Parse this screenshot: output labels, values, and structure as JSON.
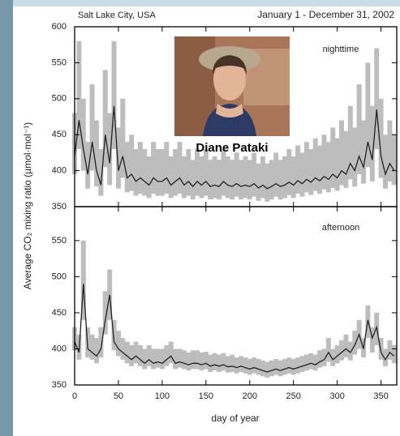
{
  "photo_caption": "Diane Pataki",
  "chart_data": [
    {
      "type": "line",
      "header_left": "Salt Lake City, USA",
      "header_right": "January 1 - December 31, 2002",
      "title": "nighttime",
      "ylabel": "Average CO₂ mixing ratio (µmol·mol⁻¹)",
      "color": "#222222",
      "band_color": "#bdbdbd",
      "xlim": [
        0,
        368
      ],
      "xticks": [
        0,
        50,
        100,
        150,
        200,
        250,
        300,
        350
      ],
      "ylim": [
        350,
        600
      ],
      "yticks": [
        350,
        400,
        450,
        500,
        550,
        600
      ],
      "x": [
        0,
        5,
        10,
        15,
        20,
        25,
        30,
        35,
        40,
        45,
        50,
        55,
        60,
        65,
        70,
        75,
        80,
        85,
        90,
        95,
        100,
        105,
        110,
        115,
        120,
        125,
        130,
        135,
        140,
        145,
        150,
        155,
        160,
        165,
        170,
        175,
        180,
        185,
        190,
        195,
        200,
        205,
        210,
        215,
        220,
        225,
        230,
        235,
        240,
        245,
        250,
        255,
        260,
        265,
        270,
        275,
        280,
        285,
        290,
        295,
        300,
        305,
        310,
        315,
        320,
        325,
        330,
        335,
        340,
        345,
        350,
        355,
        360,
        365
      ],
      "values": [
        420,
        470,
        430,
        395,
        440,
        400,
        380,
        450,
        410,
        490,
        400,
        420,
        390,
        395,
        385,
        390,
        385,
        380,
        390,
        385,
        385,
        390,
        380,
        385,
        390,
        380,
        385,
        378,
        385,
        380,
        385,
        378,
        380,
        378,
        385,
        380,
        378,
        382,
        378,
        380,
        378,
        382,
        376,
        380,
        375,
        378,
        382,
        378,
        380,
        384,
        380,
        386,
        382,
        388,
        384,
        390,
        386,
        392,
        388,
        395,
        390,
        400,
        395,
        410,
        400,
        420,
        405,
        440,
        415,
        485,
        420,
        395,
        410,
        400
      ],
      "range_high": [
        480,
        580,
        500,
        440,
        520,
        470,
        430,
        540,
        480,
        580,
        460,
        500,
        440,
        450,
        430,
        440,
        430,
        420,
        440,
        430,
        430,
        440,
        420,
        430,
        440,
        420,
        430,
        415,
        430,
        420,
        430,
        415,
        420,
        415,
        430,
        420,
        415,
        425,
        415,
        420,
        415,
        425,
        410,
        420,
        410,
        415,
        425,
        415,
        420,
        430,
        420,
        435,
        425,
        440,
        430,
        445,
        435,
        450,
        440,
        460,
        445,
        470,
        455,
        490,
        460,
        520,
        470,
        550,
        490,
        570,
        500,
        450,
        470,
        450
      ],
      "range_low": [
        395,
        430,
        400,
        375,
        400,
        378,
        365,
        405,
        380,
        430,
        375,
        390,
        370,
        372,
        365,
        368,
        365,
        362,
        368,
        365,
        365,
        368,
        362,
        365,
        368,
        362,
        365,
        360,
        365,
        362,
        365,
        360,
        362,
        360,
        365,
        362,
        360,
        364,
        360,
        362,
        360,
        364,
        358,
        362,
        357,
        360,
        364,
        360,
        362,
        366,
        362,
        368,
        364,
        370,
        366,
        372,
        368,
        374,
        370,
        376,
        372,
        380,
        376,
        388,
        378,
        395,
        382,
        405,
        385,
        430,
        390,
        375,
        385,
        380
      ]
    },
    {
      "type": "line",
      "title": "afternoon",
      "xlabel": "day of year",
      "color": "#222222",
      "band_color": "#bdbdbd",
      "xlim": [
        0,
        368
      ],
      "xticks": [
        0,
        50,
        100,
        150,
        200,
        250,
        300,
        350
      ],
      "ylim": [
        350,
        597
      ],
      "yticks": [
        350,
        400,
        450,
        500,
        550
      ],
      "x": [
        0,
        5,
        10,
        15,
        20,
        25,
        30,
        35,
        40,
        45,
        50,
        55,
        60,
        65,
        70,
        75,
        80,
        85,
        90,
        95,
        100,
        105,
        110,
        115,
        120,
        125,
        130,
        135,
        140,
        145,
        150,
        155,
        160,
        165,
        170,
        175,
        180,
        185,
        190,
        195,
        200,
        205,
        210,
        215,
        220,
        225,
        230,
        235,
        240,
        245,
        250,
        255,
        260,
        265,
        270,
        275,
        280,
        285,
        290,
        295,
        300,
        305,
        310,
        315,
        320,
        325,
        330,
        335,
        340,
        345,
        350,
        355,
        360,
        365
      ],
      "values": [
        410,
        395,
        490,
        400,
        395,
        390,
        400,
        440,
        475,
        410,
        400,
        395,
        390,
        385,
        390,
        385,
        380,
        385,
        380,
        382,
        380,
        385,
        390,
        380,
        382,
        380,
        378,
        380,
        380,
        378,
        380,
        376,
        378,
        376,
        378,
        375,
        376,
        374,
        376,
        374,
        372,
        374,
        372,
        370,
        368,
        370,
        372,
        370,
        372,
        374,
        372,
        374,
        376,
        378,
        380,
        378,
        382,
        385,
        395,
        385,
        390,
        395,
        400,
        395,
        405,
        420,
        400,
        440,
        415,
        430,
        395,
        385,
        395,
        390
      ],
      "range_high": [
        430,
        420,
        550,
        430,
        420,
        415,
        430,
        480,
        510,
        440,
        425,
        415,
        410,
        405,
        410,
        405,
        400,
        405,
        400,
        400,
        400,
        405,
        410,
        400,
        400,
        398,
        395,
        398,
        398,
        395,
        396,
        392,
        394,
        392,
        394,
        390,
        392,
        388,
        390,
        388,
        386,
        388,
        386,
        384,
        382,
        384,
        386,
        384,
        386,
        388,
        386,
        388,
        390,
        392,
        394,
        392,
        398,
        400,
        415,
        400,
        405,
        412,
        420,
        410,
        425,
        440,
        415,
        460,
        430,
        450,
        415,
        400,
        412,
        405
      ],
      "range_low": [
        398,
        385,
        440,
        388,
        385,
        380,
        388,
        420,
        440,
        398,
        390,
        385,
        380,
        376,
        380,
        376,
        372,
        376,
        372,
        374,
        372,
        376,
        380,
        372,
        374,
        372,
        370,
        372,
        372,
        370,
        372,
        368,
        370,
        368,
        370,
        367,
        368,
        366,
        368,
        366,
        364,
        366,
        364,
        362,
        360,
        362,
        364,
        362,
        364,
        366,
        364,
        366,
        368,
        370,
        372,
        370,
        374,
        376,
        382,
        376,
        380,
        384,
        388,
        384,
        392,
        400,
        388,
        415,
        395,
        405,
        385,
        376,
        385,
        380
      ]
    }
  ]
}
